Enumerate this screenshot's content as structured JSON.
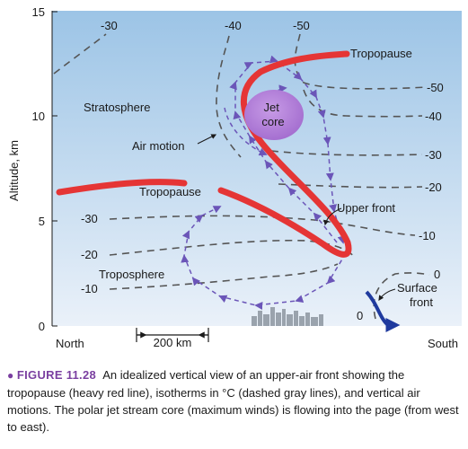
{
  "figure": {
    "y_axis": {
      "label": "Altitude, km",
      "ticks": [
        "0",
        "5",
        "10",
        "15"
      ]
    },
    "x_axis": {
      "left": "North",
      "right": "South",
      "scale_bar": "200 km"
    },
    "labels": {
      "stratosphere": "Stratosphere",
      "troposphere": "Troposphere",
      "tropopause_left": "Tropopause",
      "tropopause_right": "Tropopause",
      "jet_core": "Jet\ncore",
      "air_motion": "Air motion",
      "upper_front": "Upper front",
      "surface_front": "Surface\nfront"
    },
    "isotherm_labels": {
      "top": [
        "-30",
        "-40",
        "-50"
      ],
      "right": [
        "-50",
        "-40",
        "-30",
        "-20",
        "-10",
        "0"
      ],
      "left": [
        "-30",
        "-20",
        "-10"
      ],
      "bottom": "0"
    },
    "colors": {
      "tropopause": "#e53535",
      "isotherm": "#555555",
      "air_motion": "#6b55b8",
      "jet_core": "#b07ad6",
      "surface_front": "#1f3a9e",
      "sky_top": "#9cc4e6",
      "sky_bottom": "#eaf1f9"
    }
  },
  "caption": {
    "label": "FIGURE 11.28",
    "text": "An idealized vertical view of an upper-air front showing the tropopause (heavy red line), isotherms in °C (dashed gray lines), and vertical air motions. The polar jet stream core (maximum winds) is flowing into the page (from west to east)."
  }
}
